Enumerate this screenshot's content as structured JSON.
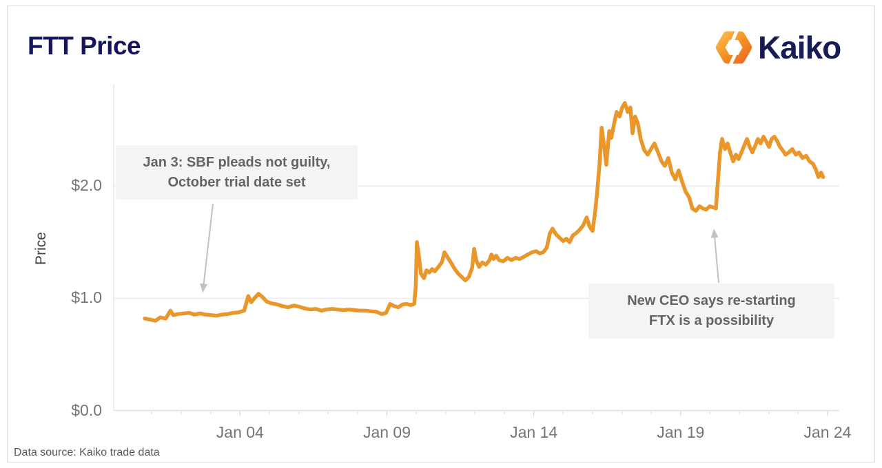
{
  "header": {
    "title": "FTT Price",
    "brand_name": "Kaiko"
  },
  "footer": {
    "source_note": "Data source: Kaiko trade data"
  },
  "colors": {
    "line_orange": "#e9962b",
    "title_navy": "#15155c",
    "brand_navy": "#191b55",
    "logo_orange_light": "#fbb64a",
    "logo_orange_mid": "#f49222",
    "logo_orange_deep": "#ea6a24",
    "annotation_bg": "#f4f4f4",
    "annotation_text": "#646464",
    "axis_text": "#767676",
    "gridline": "#ebebeb",
    "axis_line": "#e0e0e0",
    "tick_mark": "#d9d9d9",
    "arrow_gray": "#c1c1c1"
  },
  "chart_data": {
    "type": "line",
    "title": "FTT Price",
    "xlabel": "",
    "ylabel": "Price",
    "x_unit": "date (January 2023)",
    "currency": "USD",
    "xlim": [
      -0.3,
      24.4
    ],
    "ylim": [
      0,
      2.91
    ],
    "grid": "horizontal-only",
    "legend": "none",
    "xticks": [
      {
        "day": 4,
        "label": "Jan 04"
      },
      {
        "day": 9,
        "label": "Jan 09"
      },
      {
        "day": 14,
        "label": "Jan 14"
      },
      {
        "day": 19,
        "label": "Jan 19"
      },
      {
        "day": 24,
        "label": "Jan 24"
      }
    ],
    "yticks": [
      {
        "value": 0.0,
        "label": "$0.0"
      },
      {
        "value": 1.0,
        "label": "$1.0"
      },
      {
        "value": 2.0,
        "label": "$2.0"
      }
    ],
    "series": [
      {
        "name": "FTT price (USD)",
        "color": "#e9962b",
        "points": [
          [
            0.76,
            0.82
          ],
          [
            0.95,
            0.81
          ],
          [
            1.12,
            0.8
          ],
          [
            1.28,
            0.83
          ],
          [
            1.47,
            0.82
          ],
          [
            1.63,
            0.89
          ],
          [
            1.73,
            0.85
          ],
          [
            1.89,
            0.86
          ],
          [
            2.08,
            0.865
          ],
          [
            2.27,
            0.87
          ],
          [
            2.45,
            0.855
          ],
          [
            2.64,
            0.865
          ],
          [
            2.83,
            0.855
          ],
          [
            3.02,
            0.85
          ],
          [
            3.2,
            0.845
          ],
          [
            3.39,
            0.855
          ],
          [
            3.58,
            0.86
          ],
          [
            3.77,
            0.87
          ],
          [
            3.95,
            0.875
          ],
          [
            4.14,
            0.89
          ],
          [
            4.28,
            1.02
          ],
          [
            4.38,
            0.965
          ],
          [
            4.49,
            1.0
          ],
          [
            4.63,
            1.04
          ],
          [
            4.77,
            1.01
          ],
          [
            4.91,
            0.97
          ],
          [
            5.08,
            0.955
          ],
          [
            5.27,
            0.945
          ],
          [
            5.45,
            0.93
          ],
          [
            5.64,
            0.92
          ],
          [
            5.83,
            0.935
          ],
          [
            6.02,
            0.925
          ],
          [
            6.2,
            0.91
          ],
          [
            6.39,
            0.9
          ],
          [
            6.58,
            0.905
          ],
          [
            6.77,
            0.89
          ],
          [
            6.95,
            0.9
          ],
          [
            7.14,
            0.905
          ],
          [
            7.33,
            0.9
          ],
          [
            7.52,
            0.895
          ],
          [
            7.7,
            0.9
          ],
          [
            7.89,
            0.895
          ],
          [
            8.08,
            0.89
          ],
          [
            8.27,
            0.89
          ],
          [
            8.45,
            0.885
          ],
          [
            8.64,
            0.88
          ],
          [
            8.83,
            0.86
          ],
          [
            8.97,
            0.87
          ],
          [
            9.11,
            0.95
          ],
          [
            9.25,
            0.93
          ],
          [
            9.39,
            0.92
          ],
          [
            9.53,
            0.945
          ],
          [
            9.67,
            0.95
          ],
          [
            9.81,
            0.94
          ],
          [
            9.93,
            0.95
          ],
          [
            9.98,
            1.1
          ],
          [
            10.02,
            1.5
          ],
          [
            10.09,
            1.38
          ],
          [
            10.16,
            1.22
          ],
          [
            10.26,
            1.18
          ],
          [
            10.35,
            1.25
          ],
          [
            10.44,
            1.23
          ],
          [
            10.54,
            1.26
          ],
          [
            10.63,
            1.24
          ],
          [
            10.75,
            1.28
          ],
          [
            10.87,
            1.32
          ],
          [
            10.96,
            1.41
          ],
          [
            11.08,
            1.36
          ],
          [
            11.2,
            1.31
          ],
          [
            11.31,
            1.26
          ],
          [
            11.43,
            1.22
          ],
          [
            11.55,
            1.19
          ],
          [
            11.67,
            1.16
          ],
          [
            11.79,
            1.19
          ],
          [
            11.9,
            1.27
          ],
          [
            11.97,
            1.44
          ],
          [
            12.04,
            1.34
          ],
          [
            12.14,
            1.28
          ],
          [
            12.25,
            1.32
          ],
          [
            12.37,
            1.3
          ],
          [
            12.49,
            1.34
          ],
          [
            12.56,
            1.39
          ],
          [
            12.63,
            1.35
          ],
          [
            12.72,
            1.38
          ],
          [
            12.82,
            1.34
          ],
          [
            12.96,
            1.33
          ],
          [
            13.1,
            1.36
          ],
          [
            13.24,
            1.34
          ],
          [
            13.38,
            1.36
          ],
          [
            13.52,
            1.35
          ],
          [
            13.66,
            1.37
          ],
          [
            13.8,
            1.39
          ],
          [
            13.94,
            1.41
          ],
          [
            14.08,
            1.42
          ],
          [
            14.2,
            1.4
          ],
          [
            14.32,
            1.41
          ],
          [
            14.44,
            1.45
          ],
          [
            14.55,
            1.58
          ],
          [
            14.64,
            1.62
          ],
          [
            14.76,
            1.57
          ],
          [
            14.88,
            1.54
          ],
          [
            15.0,
            1.51
          ],
          [
            15.11,
            1.53
          ],
          [
            15.22,
            1.5
          ],
          [
            15.33,
            1.56
          ],
          [
            15.44,
            1.58
          ],
          [
            15.56,
            1.61
          ],
          [
            15.68,
            1.65
          ],
          [
            15.8,
            1.72
          ],
          [
            15.9,
            1.64
          ],
          [
            16.0,
            1.6
          ],
          [
            16.08,
            1.75
          ],
          [
            16.16,
            1.95
          ],
          [
            16.24,
            2.2
          ],
          [
            16.31,
            2.52
          ],
          [
            16.4,
            2.35
          ],
          [
            16.47,
            2.19
          ],
          [
            16.57,
            2.49
          ],
          [
            16.64,
            2.43
          ],
          [
            16.73,
            2.55
          ],
          [
            16.82,
            2.66
          ],
          [
            16.92,
            2.62
          ],
          [
            17.01,
            2.7
          ],
          [
            17.1,
            2.74
          ],
          [
            17.2,
            2.66
          ],
          [
            17.29,
            2.7
          ],
          [
            17.36,
            2.47
          ],
          [
            17.45,
            2.62
          ],
          [
            17.55,
            2.55
          ],
          [
            17.64,
            2.42
          ],
          [
            17.76,
            2.32
          ],
          [
            17.88,
            2.28
          ],
          [
            17.99,
            2.33
          ],
          [
            18.11,
            2.38
          ],
          [
            18.23,
            2.3
          ],
          [
            18.35,
            2.22
          ],
          [
            18.46,
            2.18
          ],
          [
            18.58,
            2.25
          ],
          [
            18.7,
            2.12
          ],
          [
            18.82,
            2.06
          ],
          [
            18.93,
            2.14
          ],
          [
            19.05,
            2.04
          ],
          [
            19.17,
            1.95
          ],
          [
            19.29,
            1.9
          ],
          [
            19.4,
            1.8
          ],
          [
            19.52,
            1.78
          ],
          [
            19.64,
            1.82
          ],
          [
            19.76,
            1.8
          ],
          [
            19.87,
            1.79
          ],
          [
            19.99,
            1.82
          ],
          [
            20.11,
            1.81
          ],
          [
            20.2,
            1.8
          ],
          [
            20.27,
            2.05
          ],
          [
            20.34,
            2.3
          ],
          [
            20.41,
            2.42
          ],
          [
            20.51,
            2.33
          ],
          [
            20.6,
            2.38
          ],
          [
            20.69,
            2.3
          ],
          [
            20.79,
            2.22
          ],
          [
            20.88,
            2.28
          ],
          [
            20.97,
            2.24
          ],
          [
            21.07,
            2.3
          ],
          [
            21.16,
            2.36
          ],
          [
            21.26,
            2.42
          ],
          [
            21.35,
            2.35
          ],
          [
            21.44,
            2.3
          ],
          [
            21.54,
            2.36
          ],
          [
            21.63,
            2.42
          ],
          [
            21.72,
            2.38
          ],
          [
            21.82,
            2.44
          ],
          [
            21.91,
            2.4
          ],
          [
            22.01,
            2.35
          ],
          [
            22.1,
            2.42
          ],
          [
            22.19,
            2.44
          ],
          [
            22.29,
            2.4
          ],
          [
            22.38,
            2.35
          ],
          [
            22.47,
            2.32
          ],
          [
            22.57,
            2.28
          ],
          [
            22.68,
            2.3
          ],
          [
            22.8,
            2.33
          ],
          [
            22.92,
            2.28
          ],
          [
            23.03,
            2.3
          ],
          [
            23.15,
            2.25
          ],
          [
            23.27,
            2.27
          ],
          [
            23.39,
            2.22
          ],
          [
            23.5,
            2.2
          ],
          [
            23.6,
            2.15
          ],
          [
            23.69,
            2.08
          ],
          [
            23.78,
            2.12
          ],
          [
            23.85,
            2.08
          ]
        ]
      }
    ],
    "annotations": [
      {
        "line1": "Jan 3: SBF pleads not guilty,",
        "line2": "October trial date set",
        "arrow_to": {
          "day": 2.73,
          "price": 1.05
        }
      },
      {
        "line1": "New CEO says re-starting",
        "line2": "FTX is a possibility",
        "arrow_to": {
          "day": 20.13,
          "price": 1.62
        }
      }
    ]
  }
}
